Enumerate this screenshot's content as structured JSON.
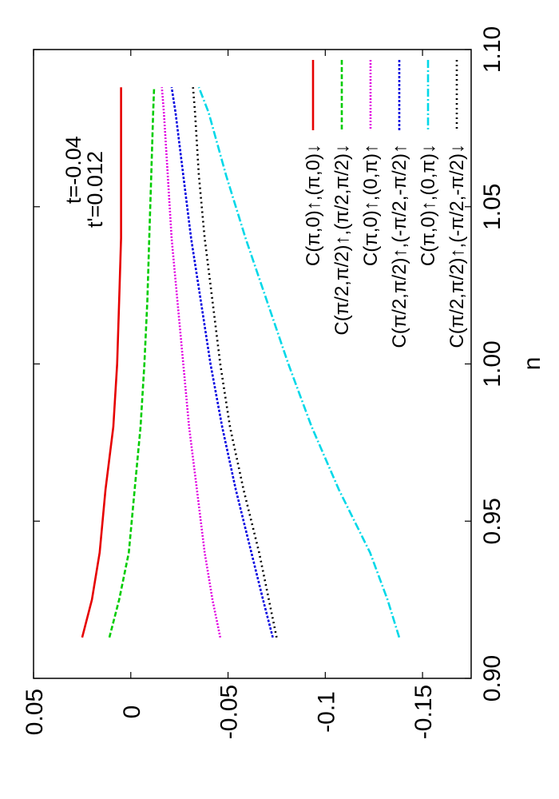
{
  "chart_data": {
    "type": "line",
    "xlabel": "n",
    "ylabel": "",
    "xlim": [
      0.9,
      1.1
    ],
    "ylim": [
      -0.175,
      0.05
    ],
    "x_ticks": [
      "0.90",
      "0.95",
      "1.00",
      "1.05",
      "1.10"
    ],
    "y_ticks": [
      "0.05",
      "0",
      "-0.05",
      "-0.1",
      "-0.15"
    ],
    "orientation": "rotated 90 degrees counter-clockwise",
    "annotations": [
      "t=-0.04",
      "t'=0.012"
    ],
    "legend_position": "top-right",
    "x": [
      0.913,
      0.925,
      0.94,
      0.96,
      0.98,
      1.0,
      1.02,
      1.04,
      1.06,
      1.08,
      1.088
    ],
    "series": [
      {
        "name": "C(π,0)↑,(π,0)↓",
        "color": "#e60000",
        "dash": "",
        "values": [
          0.025,
          0.02,
          0.016,
          0.013,
          0.009,
          0.007,
          0.006,
          0.005,
          0.005,
          0.005,
          0.005
        ]
      },
      {
        "name": "C(π/2,π/2)↑,(π/2,π/2)↓",
        "color": "#00cc00",
        "dash": "6,3",
        "values": [
          0.011,
          0.006,
          0.001,
          -0.002,
          -0.005,
          -0.007,
          -0.0085,
          -0.0095,
          -0.0105,
          -0.0115,
          -0.012
        ]
      },
      {
        "name": "C(π,0)↑,(0,π)↑",
        "color": "#e000e0",
        "dash": "2,2",
        "values": [
          -0.046,
          -0.042,
          -0.038,
          -0.034,
          -0.03,
          -0.027,
          -0.024,
          -0.021,
          -0.019,
          -0.017,
          -0.016
        ]
      },
      {
        "name": "C(π/2,π/2)↑,(-π/2,-π/2)↑",
        "color": "#0000e0",
        "dash": "3,2",
        "values": [
          -0.073,
          -0.068,
          -0.062,
          -0.054,
          -0.047,
          -0.041,
          -0.036,
          -0.031,
          -0.027,
          -0.023,
          -0.021
        ]
      },
      {
        "name": "C(π,0)↑,(0,π)↓",
        "color": "#00d8e8",
        "dash": "10,3,2,3",
        "values": [
          -0.138,
          -0.132,
          -0.123,
          -0.107,
          -0.093,
          -0.081,
          -0.07,
          -0.059,
          -0.049,
          -0.04,
          -0.035
        ]
      },
      {
        "name": "C(π/2,π/2)↑,(-π/2,-π/2)↓",
        "color": "#000000",
        "dash": "2,4",
        "values": [
          -0.075,
          -0.071,
          -0.066,
          -0.058,
          -0.051,
          -0.046,
          -0.042,
          -0.038,
          -0.035,
          -0.033,
          -0.032
        ]
      }
    ]
  }
}
